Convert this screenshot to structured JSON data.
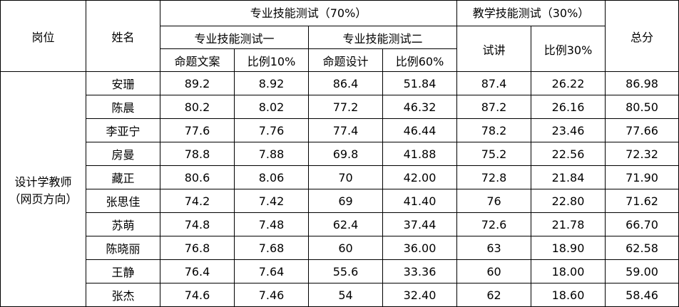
{
  "header": {
    "post": "岗位",
    "name": "姓名",
    "total": "总分",
    "professional": {
      "title": "专业技能测试（70%）",
      "test1": {
        "title": "专业技能测试一",
        "score": "命题文案",
        "ratio": "比例10%"
      },
      "test2": {
        "title": "专业技能测试二",
        "score": "命题设计",
        "ratio": "比例60%"
      }
    },
    "teaching": {
      "title": "教学技能测试（30%）",
      "score": "试讲",
      "ratio": "比例30%"
    }
  },
  "post": [
    "设计学教师",
    "（网页方向）"
  ],
  "rows": [
    [
      "安珊",
      "89.2",
      "8.92",
      "86.4",
      "51.84",
      "87.4",
      "26.22",
      "86.98"
    ],
    [
      "陈晨",
      "80.2",
      "8.02",
      "77.2",
      "46.32",
      "87.2",
      "26.16",
      "80.50"
    ],
    [
      "李亚宁",
      "77.6",
      "7.76",
      "77.4",
      "46.44",
      "78.2",
      "23.46",
      "77.66"
    ],
    [
      "房曼",
      "78.8",
      "7.88",
      "69.8",
      "41.88",
      "75.2",
      "22.56",
      "72.32"
    ],
    [
      "藏正",
      "80.6",
      "8.06",
      "70",
      "42.00",
      "72.8",
      "21.84",
      "71.90"
    ],
    [
      "张思佳",
      "74.2",
      "7.42",
      "69",
      "41.40",
      "76",
      "22.80",
      "71.62"
    ],
    [
      "苏萌",
      "74.8",
      "7.48",
      "62.4",
      "37.44",
      "72.6",
      "21.78",
      "66.70"
    ],
    [
      "陈晓丽",
      "76.8",
      "7.68",
      "60",
      "36.00",
      "63",
      "18.90",
      "62.58"
    ],
    [
      "王静",
      "76.4",
      "7.64",
      "55.6",
      "33.36",
      "60",
      "18.00",
      "59.00"
    ],
    [
      "张杰",
      "74.6",
      "7.46",
      "54",
      "32.40",
      "62",
      "18.60",
      "58.46"
    ]
  ]
}
